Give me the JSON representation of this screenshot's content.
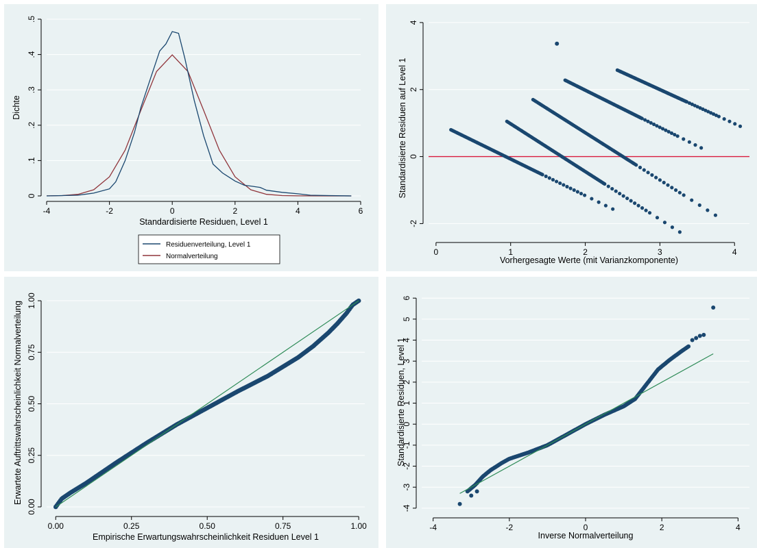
{
  "chart_data": [
    {
      "type": "line",
      "xlabel": "Standardisierte Residuen, Level 1",
      "ylabel": "Dichte",
      "xlim": [
        -4,
        6
      ],
      "ylim": [
        0,
        0.5
      ],
      "xticks": [
        -4,
        -2,
        0,
        2,
        4,
        6
      ],
      "xtick_labels": [
        "-4",
        "-2",
        "0",
        "2",
        "4",
        "6"
      ],
      "yticks": [
        0,
        0.1,
        0.2,
        0.3,
        0.4,
        0.5
      ],
      "ytick_labels": [
        "0",
        ".1",
        ".2",
        ".3",
        ".4",
        ".5"
      ],
      "legend_position": "bottom",
      "colors": {
        "series1": "#1a476f",
        "series2": "#90353b"
      },
      "series": [
        {
          "name": "Residuenverteilung, Level 1",
          "x": [
            -4,
            -3,
            -2.5,
            -2,
            -1.8,
            -1.5,
            -1.2,
            -1,
            -0.7,
            -0.4,
            -0.2,
            0,
            0.2,
            0.4,
            0.7,
            1,
            1.3,
            1.6,
            2,
            2.3,
            2.5,
            2.8,
            3,
            3.5,
            4,
            4.4,
            5,
            5.7
          ],
          "y": [
            0,
            0.002,
            0.008,
            0.02,
            0.04,
            0.1,
            0.18,
            0.25,
            0.33,
            0.41,
            0.43,
            0.465,
            0.46,
            0.39,
            0.27,
            0.17,
            0.09,
            0.065,
            0.042,
            0.03,
            0.028,
            0.024,
            0.016,
            0.01,
            0.006,
            0.002,
            0.001,
            0
          ]
        },
        {
          "name": "Normalverteilung",
          "x": [
            -4,
            -3.5,
            -3,
            -2.5,
            -2,
            -1.5,
            -1,
            -0.5,
            0,
            0.5,
            1,
            1.5,
            2,
            2.5,
            3,
            3.5,
            4,
            5,
            5.7
          ],
          "y": [
            0.0001,
            0.0009,
            0.0044,
            0.0175,
            0.054,
            0.1295,
            0.242,
            0.352,
            0.399,
            0.352,
            0.242,
            0.1295,
            0.054,
            0.0175,
            0.0044,
            0.0009,
            0.0001,
            0,
            0
          ]
        }
      ]
    },
    {
      "type": "scatter",
      "xlabel": "Vorhergesagte Werte (mit Varianzkomponente)",
      "ylabel": "Standardisierte Residuen auf Level 1",
      "xlim": [
        -0.1,
        4.2
      ],
      "ylim": [
        -2.4,
        4.1
      ],
      "xticks": [
        0,
        1,
        2,
        3,
        4
      ],
      "xtick_labels": [
        "0",
        "1",
        "2",
        "3",
        "4"
      ],
      "yticks": [
        -2,
        0,
        2,
        4
      ],
      "ytick_labels": [
        "-2",
        "0",
        "2",
        "4"
      ],
      "reference_line_y": 0,
      "colors": {
        "points": "#1a476f",
        "reference": "#d81b3c"
      },
      "bands": [
        {
          "x_start": 0.2,
          "x_end": 2.4,
          "y_start": 0.8,
          "y_end": -1.6
        },
        {
          "x_start": 0.95,
          "x_end": 3.3,
          "y_start": 1.05,
          "y_end": -2.3
        },
        {
          "x_start": 1.3,
          "x_end": 3.78,
          "y_start": 1.7,
          "y_end": -1.8
        },
        {
          "x_start": 1.73,
          "x_end": 3.58,
          "y_start": 2.28,
          "y_end": 0.23
        },
        {
          "x_start": 2.43,
          "x_end": 4.1,
          "y_start": 2.58,
          "y_end": 0.88
        }
      ],
      "outliers": [
        {
          "x": 1.62,
          "y": 3.37
        }
      ]
    },
    {
      "type": "scatter",
      "xlabel": "Empirische Erwartungswahrscheinlichkeit Residuen Level 1",
      "ylabel": "Erwartete Auftrittswahrscheinlichkeit Normalverteilung",
      "xlim": [
        -0.03,
        1.02
      ],
      "ylim": [
        -0.02,
        1.03
      ],
      "xticks": [
        0,
        0.25,
        0.5,
        0.75,
        1
      ],
      "xtick_labels": [
        "0.00",
        "0.25",
        "0.50",
        "0.75",
        "1.00"
      ],
      "yticks": [
        0,
        0.25,
        0.5,
        0.75,
        1
      ],
      "ytick_labels": [
        "0.00",
        "0.25",
        "0.50",
        "0.75",
        "1.00"
      ],
      "reference_line": {
        "from": [
          0,
          0
        ],
        "to": [
          1,
          1
        ]
      },
      "colors": {
        "points": "#1a476f",
        "reference": "#2e8b57"
      },
      "curve": {
        "x": [
          0,
          0.02,
          0.05,
          0.1,
          0.2,
          0.3,
          0.4,
          0.5,
          0.6,
          0.7,
          0.8,
          0.85,
          0.9,
          0.93,
          0.96,
          0.98,
          1
        ],
        "y": [
          0,
          0.04,
          0.07,
          0.115,
          0.215,
          0.31,
          0.4,
          0.48,
          0.56,
          0.635,
          0.725,
          0.78,
          0.845,
          0.89,
          0.94,
          0.98,
          1
        ]
      }
    },
    {
      "type": "scatter",
      "xlabel": "Inverse Normalverteilung",
      "ylabel": "Standardisierte Residuen, Level 1",
      "xlim": [
        -4.3,
        4.3
      ],
      "ylim": [
        -4.2,
        6.3
      ],
      "xticks": [
        -4,
        -2,
        0,
        2,
        4
      ],
      "xtick_labels": [
        "-4",
        "-2",
        "0",
        "2",
        "4"
      ],
      "yticks": [
        -4,
        -3,
        -2,
        -1,
        0,
        1,
        2,
        3,
        4,
        5,
        6
      ],
      "ytick_labels": [
        "-4",
        "-3",
        "-2",
        "-1",
        "0",
        "1",
        "2",
        "3",
        "4",
        "5",
        "6"
      ],
      "reference_line": {
        "from": [
          -3.3,
          -3.3
        ],
        "to": [
          3.35,
          3.35
        ]
      },
      "colors": {
        "points": "#1a476f",
        "reference": "#2e8b57"
      },
      "curve": {
        "x": [
          -3.1,
          -2.9,
          -2.7,
          -2.5,
          -2.2,
          -2,
          -1.5,
          -1,
          -0.5,
          0,
          0.5,
          1,
          1.3,
          1.6,
          1.9,
          2.2,
          2.5,
          2.7
        ],
        "y": [
          -3.2,
          -2.9,
          -2.5,
          -2.2,
          -1.85,
          -1.65,
          -1.35,
          -1.0,
          -0.5,
          0,
          0.45,
          0.85,
          1.2,
          1.9,
          2.6,
          3.05,
          3.45,
          3.7
        ]
      },
      "points": [
        {
          "x": -3.3,
          "y": -3.8
        },
        {
          "x": -3.0,
          "y": -3.4
        },
        {
          "x": -2.85,
          "y": -3.2
        },
        {
          "x": 2.8,
          "y": 4.0
        },
        {
          "x": 2.9,
          "y": 4.1
        },
        {
          "x": 3.0,
          "y": 4.2
        },
        {
          "x": 3.1,
          "y": 4.25
        },
        {
          "x": 3.35,
          "y": 5.55
        }
      ]
    }
  ]
}
